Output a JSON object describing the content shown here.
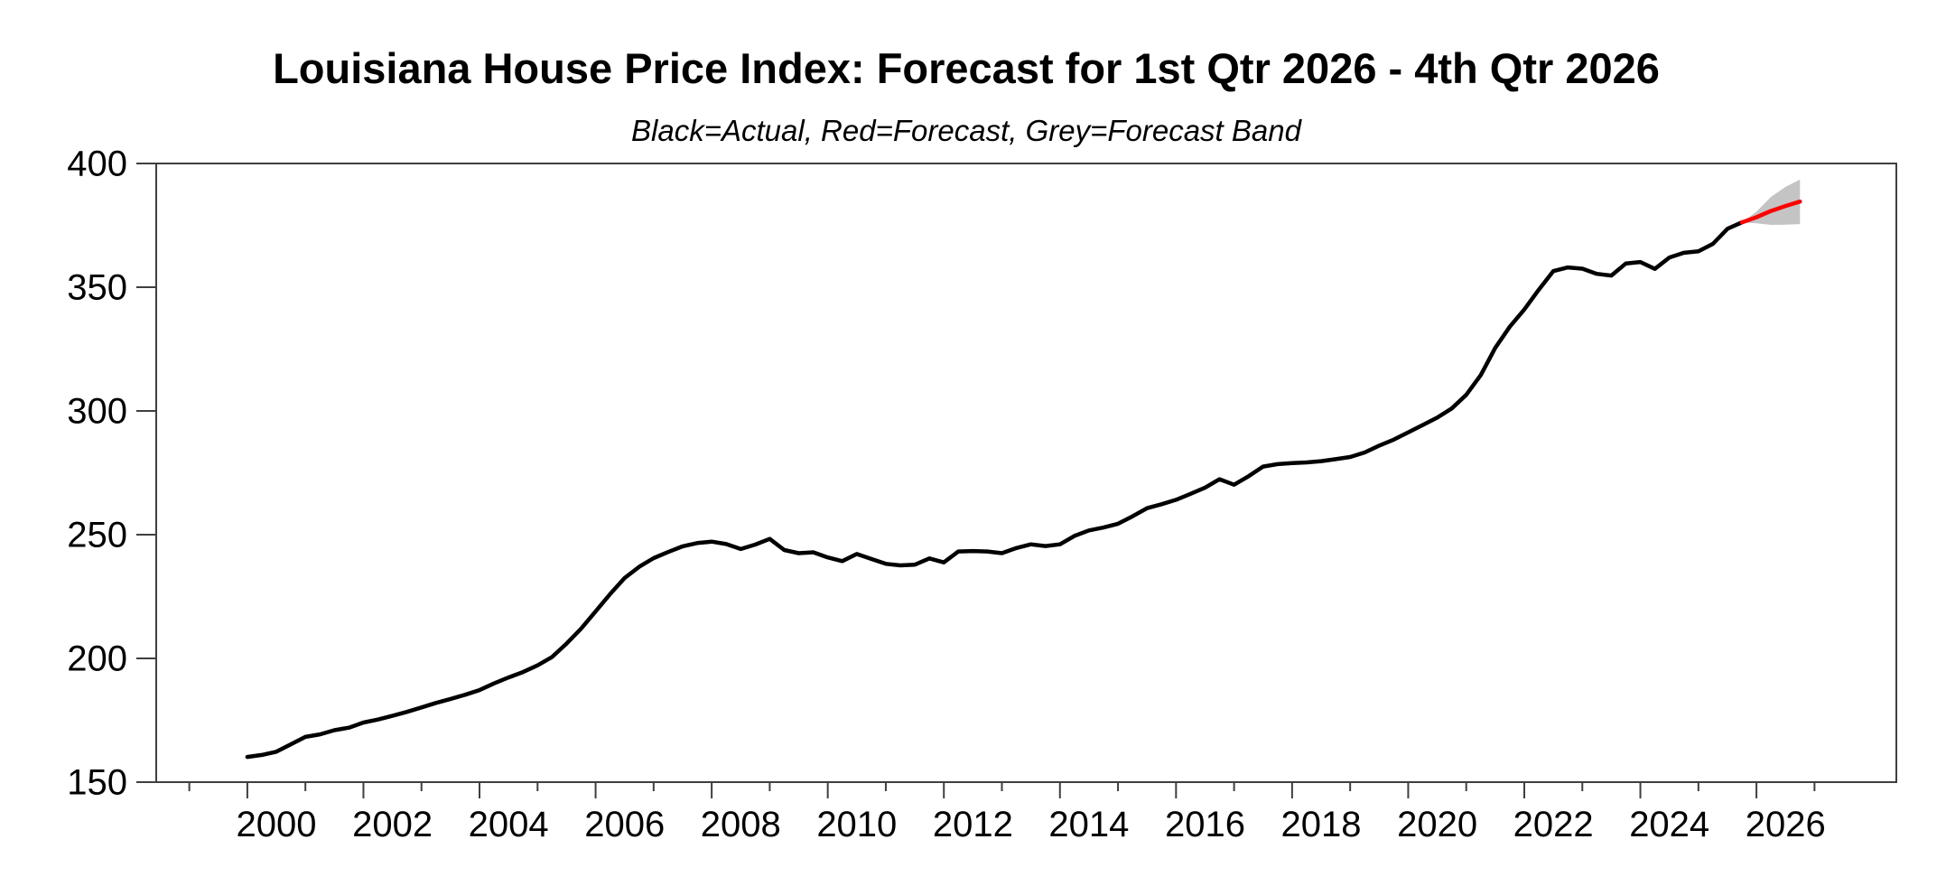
{
  "title": "Louisiana House Price Index: Forecast for 1st Qtr 2026 - 4th Qtr 2026",
  "subtitle": "Black=Actual, Red=Forecast, Grey=Forecast Band",
  "chart_data": {
    "type": "line",
    "title": "Louisiana House Price Index: Forecast for 1st Qtr 2026 - 4th Qtr 2026",
    "subtitle": "Black=Actual, Red=Forecast, Grey=Forecast Band",
    "ylabel": "",
    "xlabel": "",
    "ylim": [
      150,
      400
    ],
    "xlim": [
      1998.43,
      2028.41
    ],
    "grid": false,
    "legend_position": "none",
    "yticks": [
      150,
      200,
      250,
      300,
      350,
      400
    ],
    "xticks_major": [
      2000,
      2002,
      2004,
      2006,
      2008,
      2010,
      2012,
      2014,
      2016,
      2018,
      2020,
      2022,
      2024,
      2026
    ],
    "xticks_minor": [
      1999,
      2001,
      2003,
      2005,
      2007,
      2009,
      2011,
      2013,
      2015,
      2017,
      2019,
      2021,
      2023,
      2025,
      2027
    ],
    "series": [
      {
        "name": "Actual",
        "color": "#000000",
        "x_start": 2000.0,
        "x_step": 0.25,
        "values": [
          160.2,
          161.0,
          162.3,
          165.3,
          168.3,
          169.3,
          171.0,
          172.0,
          174.1,
          175.3,
          176.8,
          178.4,
          180.2,
          182.0,
          183.6,
          185.3,
          187.2,
          189.9,
          192.3,
          194.5,
          197.2,
          200.6,
          206.0,
          212.0,
          219.0,
          226.0,
          232.5,
          237.0,
          240.5,
          243.0,
          245.3,
          246.6,
          247.2,
          246.2,
          244.2,
          246.0,
          248.3,
          243.8,
          242.5,
          242.9,
          240.8,
          239.3,
          242.2,
          240.2,
          238.2,
          237.6,
          237.9,
          240.4,
          238.8,
          243.2,
          243.4,
          243.2,
          242.5,
          244.6,
          246.1,
          245.4,
          246.1,
          249.5,
          251.7,
          252.9,
          254.4,
          257.4,
          260.7,
          262.3,
          264.1,
          266.5,
          269.0,
          272.4,
          270.2,
          273.6,
          277.5,
          278.5,
          278.9,
          279.2,
          279.7,
          280.5,
          281.4,
          283.2,
          286.0,
          288.4,
          291.3,
          294.3,
          297.3,
          301.0,
          306.5,
          314.5,
          325.5,
          334.0,
          341.0,
          349.0,
          356.5,
          358.0,
          357.5,
          355.4,
          354.7,
          359.6,
          360.2,
          357.4,
          362.0,
          363.9,
          364.5,
          367.5,
          373.6,
          376.2
        ]
      },
      {
        "name": "Forecast",
        "color": "#fe0000",
        "x_start": 2026.0,
        "x_step": 0.25,
        "values": [
          378.3,
          380.8,
          382.8,
          384.6
        ]
      }
    ],
    "band": {
      "name": "Forecast Band",
      "color": "#c4c4c4",
      "x_start": 2026.0,
      "x_step": 0.25,
      "upper": [
        380.5,
        386.5,
        390.5,
        393.5
      ],
      "lower": [
        375.8,
        375.2,
        375.3,
        375.5
      ]
    },
    "colors": {
      "actual_line": "#000000",
      "forecast_line": "#fe0000",
      "forecast_band": "#c4c4c4",
      "axis_box": "#3f3f3f",
      "tick_mark": "#3f3f3f",
      "tick_label": "#000000"
    }
  }
}
